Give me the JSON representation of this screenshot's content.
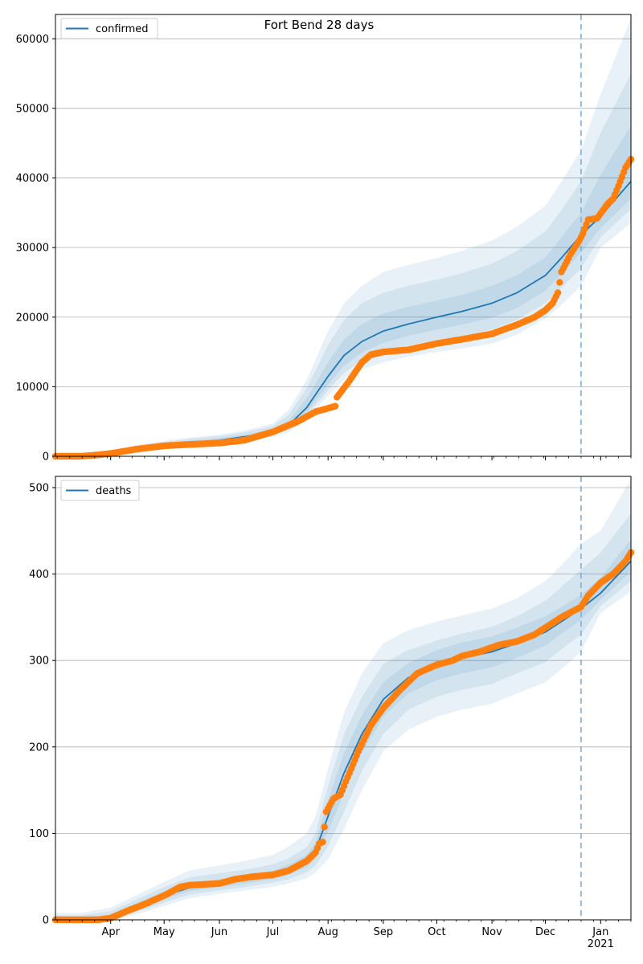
{
  "figure": {
    "title": "Fort Bend 28 days"
  },
  "colors": {
    "model_line": "#1f77b4",
    "observed_points": "#ff7f0e",
    "band": "#1f77b4",
    "forecast_line": "#7fb0d6",
    "grid": "#b0b0b0"
  },
  "month_labels": [
    "Apr",
    "May",
    "Jun",
    "Jul",
    "Aug",
    "Sep",
    "Oct",
    "Nov",
    "Dec",
    "Jan"
  ],
  "year_label": "2021",
  "chart_data": [
    {
      "type": "line",
      "name": "confirmed",
      "legend_label": "confirmed",
      "legend_position": "top-left",
      "x_range": [
        "2020-03-01",
        "2021-01-18"
      ],
      "ylim": [
        0,
        63500
      ],
      "y_ticks": [
        0,
        10000,
        20000,
        30000,
        40000,
        50000,
        60000
      ],
      "grid": "horizontal",
      "forecast_start": "2020-12-21",
      "model": {
        "x": [
          "2020-03-01",
          "2020-03-15",
          "2020-04-01",
          "2020-04-15",
          "2020-05-01",
          "2020-05-15",
          "2020-06-01",
          "2020-06-15",
          "2020-07-01",
          "2020-07-10",
          "2020-07-20",
          "2020-08-01",
          "2020-08-10",
          "2020-08-20",
          "2020-09-01",
          "2020-09-15",
          "2020-10-01",
          "2020-10-15",
          "2020-11-01",
          "2020-11-15",
          "2020-12-01",
          "2020-12-10",
          "2020-12-21",
          "2021-01-01",
          "2021-01-18"
        ],
        "y": [
          0,
          0,
          300,
          1100,
          1600,
          2000,
          2300,
          2800,
          3500,
          4500,
          7000,
          11500,
          14500,
          16500,
          18000,
          19000,
          20000,
          20800,
          22000,
          23500,
          26000,
          28500,
          31800,
          34500,
          39500
        ],
        "bands": [
          {
            "lower": [
              0,
              0,
              100,
              650,
              1100,
              1500,
              1800,
              2200,
              2800,
              3500,
              5300,
              8700,
              11000,
              12500,
              13500,
              14300,
              15000,
              15500,
              16200,
              17500,
              19800,
              21800,
              24500,
              30000,
              33500
            ],
            "upper": [
              0,
              40,
              700,
              1600,
              2200,
              2700,
              3100,
              3700,
              4700,
              6700,
              11000,
              18000,
              22000,
              24500,
              26500,
              27500,
              28500,
              29500,
              31000,
              33000,
              36000,
              39500,
              44000,
              52000,
              63000
            ]
          },
          {
            "lower": [
              0,
              0,
              150,
              800,
              1250,
              1650,
              1950,
              2400,
              3000,
              3800,
              5800,
              9500,
              12000,
              13800,
              15000,
              15900,
              16700,
              17300,
              18200,
              19600,
              22000,
              24200,
              27000,
              31500,
              35500
            ],
            "upper": [
              0,
              30,
              550,
              1450,
              2050,
              2500,
              2900,
              3450,
              4350,
              6000,
              9800,
              16000,
              19600,
              22000,
              23500,
              24500,
              25400,
              26300,
              27700,
              29500,
              32300,
              35400,
              39500,
              46500,
              55000
            ]
          },
          {
            "lower": [
              0,
              0,
              200,
              950,
              1400,
              1800,
              2100,
              2550,
              3200,
              4100,
              6300,
              10300,
              13000,
              14900,
              16300,
              17300,
              18200,
              18900,
              19900,
              21300,
              23800,
              26200,
              29300,
              32800,
              37000
            ],
            "upper": [
              0,
              20,
              420,
              1280,
              1850,
              2250,
              2600,
              3100,
              3900,
              5200,
              8300,
              13500,
              16800,
              19000,
              20500,
              21500,
              22400,
              23200,
              24500,
              26000,
              28600,
              31500,
              35000,
              40500,
              47500
            ]
          }
        ]
      },
      "observed": {
        "x": [
          "2020-03-01",
          "2020-03-15",
          "2020-03-25",
          "2020-04-01",
          "2020-04-15",
          "2020-05-01",
          "2020-05-15",
          "2020-06-01",
          "2020-06-15",
          "2020-07-01",
          "2020-07-15",
          "2020-07-25",
          "2020-08-01",
          "2020-08-05",
          "2020-08-06",
          "2020-08-12",
          "2020-08-20",
          "2020-08-25",
          "2020-09-01",
          "2020-09-15",
          "2020-10-01",
          "2020-10-15",
          "2020-11-01",
          "2020-11-15",
          "2020-11-25",
          "2020-12-01",
          "2020-12-05",
          "2020-12-08",
          "2020-12-10",
          "2020-12-15",
          "2020-12-20",
          "2020-12-22",
          "2020-12-25",
          "2020-12-30",
          "2021-01-05",
          "2021-01-08",
          "2021-01-12",
          "2021-01-15",
          "2021-01-18"
        ],
        "y": [
          0,
          0,
          200,
          400,
          1000,
          1500,
          1700,
          1900,
          2300,
          3500,
          5000,
          6400,
          6900,
          7200,
          8500,
          10500,
          13500,
          14600,
          15000,
          15300,
          16200,
          16800,
          17600,
          18900,
          20000,
          21000,
          22000,
          23500,
          26500,
          29000,
          31000,
          32000,
          34000,
          34200,
          36300,
          37000,
          39500,
          41500,
          42700
        ]
      }
    },
    {
      "type": "line",
      "name": "deaths",
      "legend_label": "deaths",
      "legend_position": "top-left",
      "x_range": [
        "2020-03-01",
        "2021-01-18"
      ],
      "ylim": [
        0,
        513
      ],
      "y_ticks": [
        0,
        100,
        200,
        300,
        400,
        500
      ],
      "grid": "horizontal",
      "forecast_start": "2020-12-21",
      "model": {
        "x": [
          "2020-03-01",
          "2020-03-15",
          "2020-04-01",
          "2020-04-15",
          "2020-05-01",
          "2020-05-15",
          "2020-06-01",
          "2020-06-15",
          "2020-07-01",
          "2020-07-10",
          "2020-07-20",
          "2020-07-25",
          "2020-08-01",
          "2020-08-10",
          "2020-08-20",
          "2020-09-01",
          "2020-09-15",
          "2020-10-01",
          "2020-10-15",
          "2020-11-01",
          "2020-11-15",
          "2020-12-01",
          "2020-12-10",
          "2020-12-21",
          "2021-01-01",
          "2021-01-18"
        ],
        "y": [
          0,
          0,
          3,
          15,
          28,
          37,
          42,
          46,
          52,
          58,
          68,
          80,
          120,
          170,
          215,
          255,
          280,
          295,
          303,
          310,
          320,
          333,
          345,
          360,
          378,
          415
        ],
        "bands": [
          {
            "lower": [
              0,
              0,
              0,
              6,
              16,
              25,
              30,
              34,
              38,
              42,
              48,
              55,
              70,
              105,
              150,
              195,
              220,
              235,
              243,
              250,
              262,
              275,
              290,
              310,
              355,
              380
            ],
            "upper": [
              8,
              8,
              14,
              28,
              44,
              57,
              63,
              68,
              75,
              85,
              100,
              120,
              175,
              240,
              285,
              320,
              335,
              345,
              352,
              360,
              372,
              392,
              410,
              435,
              450,
              510
            ]
          },
          {
            "lower": [
              0,
              0,
              1,
              9,
              20,
              29,
              34,
              38,
              43,
              47,
              55,
              63,
              85,
              125,
              172,
              215,
              243,
              258,
              266,
              273,
              285,
              298,
              313,
              330,
              363,
              392
            ],
            "upper": [
              5,
              5,
              10,
              23,
              38,
              49,
              54,
              58,
              64,
              71,
              84,
              100,
              155,
              215,
              258,
              296,
              312,
              323,
              331,
              339,
              351,
              369,
              385,
              405,
              425,
              470
            ]
          },
          {
            "lower": [
              0,
              0,
              2,
              12,
              24,
              33,
              38,
              42,
              47,
              52,
              61,
              71,
              102,
              147,
              193,
              235,
              262,
              277,
              285,
              292,
              303,
              317,
              331,
              347,
              370,
              403
            ],
            "upper": [
              3,
              3,
              6,
              19,
              33,
              42,
              47,
              51,
              57,
              64,
              75,
              89,
              138,
              193,
              237,
              275,
              297,
              312,
              321,
              328,
              338,
              351,
              362,
              376,
              396,
              440
            ]
          }
        ]
      },
      "observed": {
        "x": [
          "2020-03-01",
          "2020-03-25",
          "2020-04-01",
          "2020-04-10",
          "2020-04-20",
          "2020-05-01",
          "2020-05-10",
          "2020-05-15",
          "2020-06-01",
          "2020-06-10",
          "2020-06-20",
          "2020-07-01",
          "2020-07-10",
          "2020-07-20",
          "2020-07-25",
          "2020-07-27",
          "2020-07-29",
          "2020-07-31",
          "2020-08-04",
          "2020-08-08",
          "2020-08-12",
          "2020-08-18",
          "2020-08-25",
          "2020-09-01",
          "2020-09-10",
          "2020-09-20",
          "2020-10-01",
          "2020-10-10",
          "2020-10-15",
          "2020-10-25",
          "2020-11-05",
          "2020-11-15",
          "2020-11-25",
          "2020-12-01",
          "2020-12-10",
          "2020-12-21",
          "2020-12-25",
          "2021-01-01",
          "2021-01-08",
          "2021-01-15",
          "2021-01-18"
        ],
        "y": [
          0,
          0,
          2,
          10,
          18,
          28,
          38,
          40,
          42,
          47,
          50,
          52,
          57,
          68,
          78,
          88,
          90,
          125,
          140,
          145,
          165,
          195,
          225,
          245,
          265,
          285,
          295,
          300,
          305,
          310,
          318,
          322,
          330,
          338,
          350,
          362,
          375,
          390,
          400,
          415,
          425
        ]
      }
    }
  ]
}
